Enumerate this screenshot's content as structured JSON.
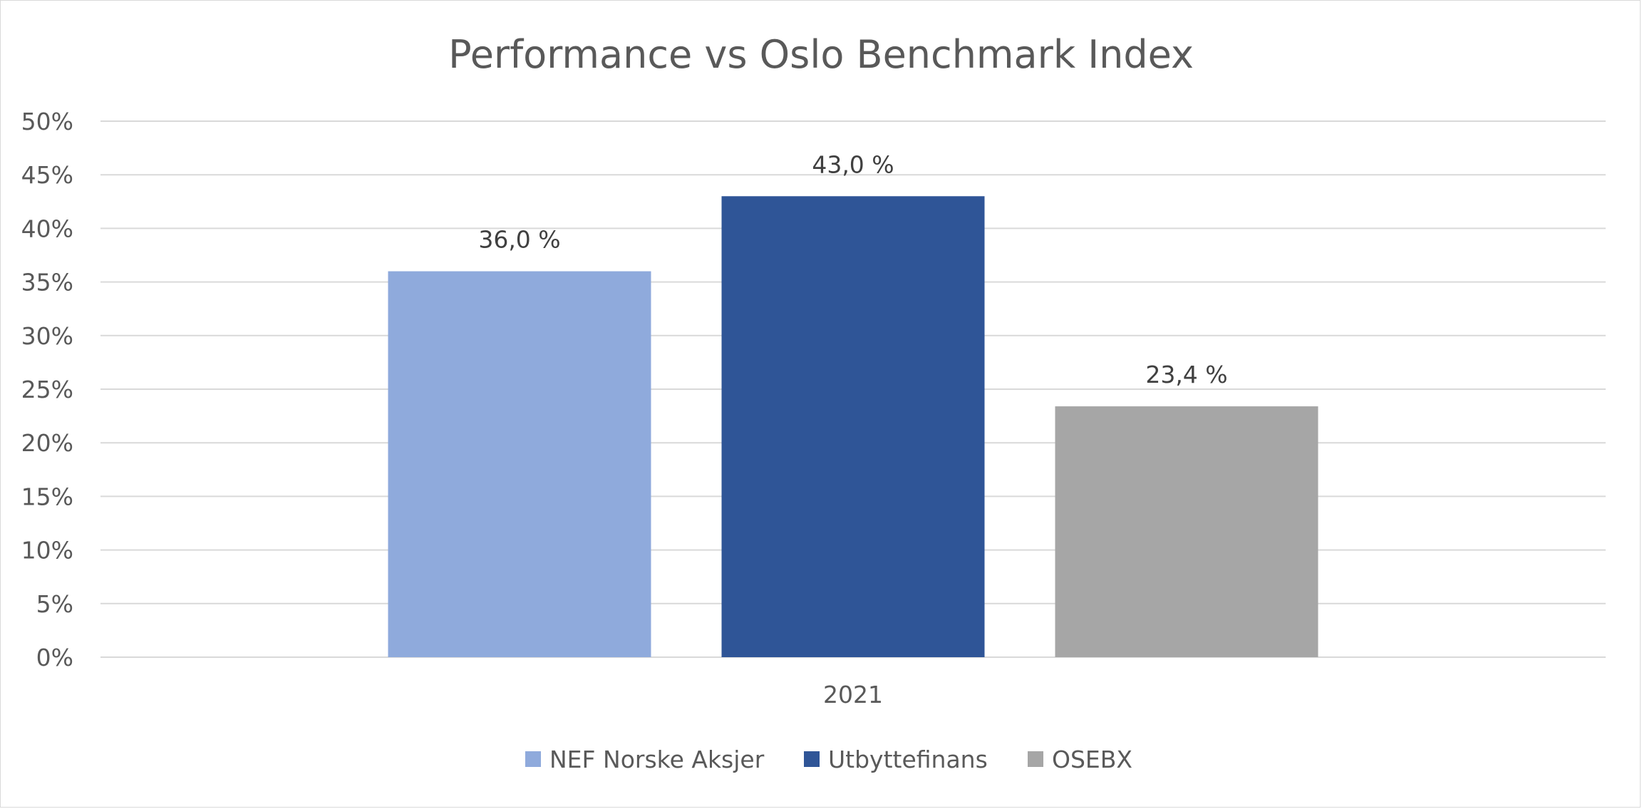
{
  "chart_data": {
    "type": "bar",
    "title": "Performance vs Oslo Benchmark Index",
    "categories": [
      "2021"
    ],
    "series": [
      {
        "name": "NEF Norske Aksjer",
        "values": [
          36.0
        ],
        "label": "36,0 %",
        "color": "#8faadc"
      },
      {
        "name": "Utbyttefinans",
        "values": [
          43.0
        ],
        "label": "43,0 %",
        "color": "#2f5597"
      },
      {
        "name": "OSEBX",
        "values": [
          23.4
        ],
        "label": "23,4 %",
        "color": "#a6a6a6"
      }
    ],
    "yticks": [
      "0%",
      "5%",
      "10%",
      "15%",
      "20%",
      "25%",
      "30%",
      "35%",
      "40%",
      "45%",
      "50%"
    ],
    "ylim": [
      0,
      50
    ],
    "grid": true,
    "legend_position": "bottom"
  }
}
